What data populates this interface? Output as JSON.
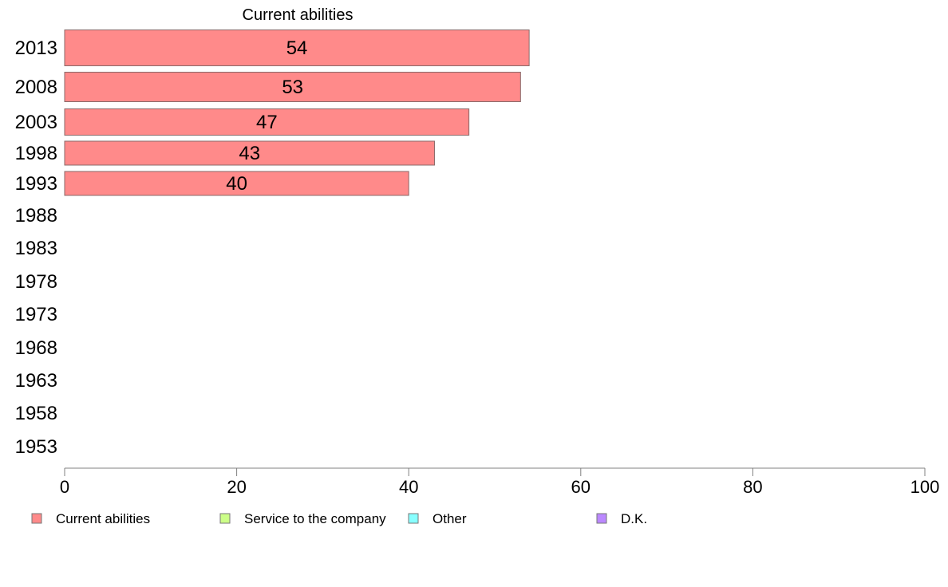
{
  "chart_data": {
    "type": "bar",
    "orientation": "horizontal",
    "title": "",
    "xlabel": "",
    "ylabel": "",
    "xlim": [
      0,
      100
    ],
    "x_ticks": [
      0,
      20,
      40,
      60,
      80,
      100
    ],
    "categories": [
      "2013",
      "2008",
      "2003",
      "1998",
      "1993",
      "1988",
      "1983",
      "1978",
      "1973",
      "1968",
      "1963",
      "1958",
      "1953"
    ],
    "series_title": "Current abilities",
    "series": [
      {
        "name": "Current abilities",
        "color": "#ff8a8a",
        "values": [
          54,
          53,
          47,
          43,
          40,
          null,
          null,
          null,
          null,
          null,
          null,
          null,
          null
        ]
      }
    ],
    "legend": {
      "position": "bottom",
      "items": [
        {
          "label": "Current abilities",
          "color": "#ff8a8a"
        },
        {
          "label": "Service to the company",
          "color": "#ccff88"
        },
        {
          "label": "Other",
          "color": "#88ffff"
        },
        {
          "label": "D.K.",
          "color": "#bb88ff"
        }
      ]
    },
    "grid": false
  }
}
